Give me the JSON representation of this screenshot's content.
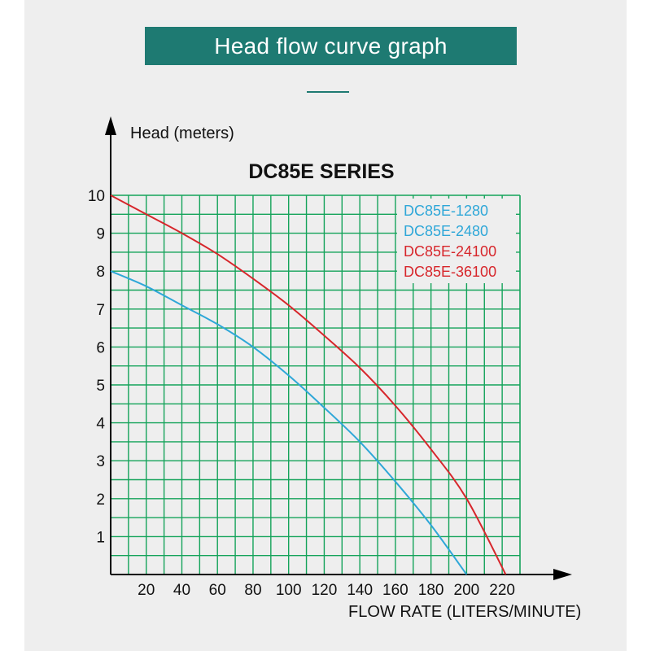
{
  "banner": {
    "title": "Head flow curve graph"
  },
  "colors": {
    "banner": "#1e7a72",
    "grid": "#14a35a",
    "blue": "#2ea7d8",
    "red": "#d7262b"
  },
  "chart_data": {
    "type": "line",
    "title": "DC85E SERIES",
    "ylabel": "Head (meters)",
    "xlabel": "FLOW RATE (LITERS/MINUTE)",
    "xlim": [
      0,
      230
    ],
    "ylim": [
      0,
      10
    ],
    "x_ticks": [
      20,
      40,
      60,
      80,
      100,
      120,
      140,
      160,
      180,
      200,
      220
    ],
    "y_ticks": [
      1,
      2,
      3,
      4,
      5,
      6,
      7,
      8,
      9,
      10
    ],
    "grid": true,
    "legend_position": "top-right",
    "legend": [
      {
        "label": "DC85E-1280",
        "color": "#2ea7d8"
      },
      {
        "label": "DC85E-2480",
        "color": "#2ea7d8"
      },
      {
        "label": "DC85E-24100",
        "color": "#d7262b"
      },
      {
        "label": "DC85E-36100",
        "color": "#d7262b"
      }
    ],
    "series": [
      {
        "color": "#2ea7d8",
        "x": [
          0,
          20,
          40,
          60,
          80,
          100,
          120,
          140,
          160,
          180,
          200
        ],
        "y": [
          8.0,
          7.6,
          7.1,
          6.6,
          6.0,
          5.25,
          4.4,
          3.5,
          2.45,
          1.3,
          0.0
        ]
      },
      {
        "color": "#d7262b",
        "x": [
          0,
          20,
          40,
          60,
          80,
          100,
          120,
          140,
          160,
          180,
          200,
          222
        ],
        "y": [
          10.0,
          9.5,
          9.0,
          8.45,
          7.8,
          7.1,
          6.3,
          5.45,
          4.45,
          3.3,
          2.0,
          0.0
        ]
      }
    ]
  }
}
